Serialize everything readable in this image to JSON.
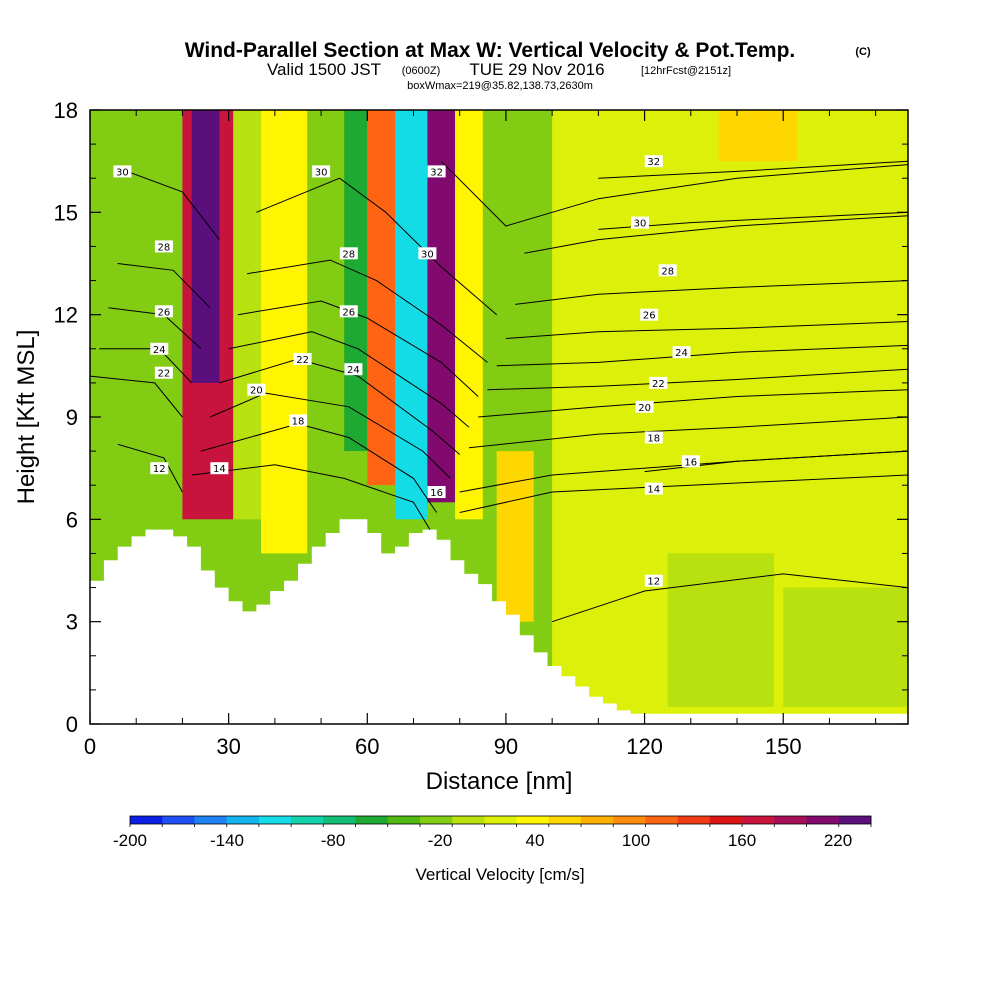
{
  "chart_data": {
    "type": "heatmap",
    "title": "Wind-Parallel Section at Max W: Vertical Velocity & Pot.Temp.",
    "title_mark": "(C)",
    "subtitle": {
      "valid": "Valid 1500 JST",
      "z_time": "(0600Z)",
      "date": "TUE 29 Nov 2016",
      "forecast": "[12hrFcst@2151z]",
      "box": "boxWmax=219@35.82,138.73,2630m"
    },
    "xlabel": "Distance [nm]",
    "ylabel": "Height [Kft MSL]",
    "xlim": [
      0,
      177
    ],
    "ylim": [
      0,
      18
    ],
    "x_ticks": [
      "0",
      "30",
      "60",
      "90",
      "120",
      "150"
    ],
    "y_ticks": [
      "0",
      "3",
      "6",
      "9",
      "12",
      "15",
      "18"
    ],
    "colorbar": {
      "label": "Vertical Velocity [cm/s]",
      "tick_labels": [
        "-200",
        "-140",
        "-80",
        "-20",
        "40",
        "100",
        "160",
        "220"
      ],
      "colors": [
        "#0a1ee6",
        "#1f50f5",
        "#1e82f5",
        "#14b4f0",
        "#14dce6",
        "#14d2aa",
        "#14be78",
        "#1eaa32",
        "#50b914",
        "#82cd14",
        "#b9e10f",
        "#dcf00a",
        "#fff500",
        "#ffd700",
        "#ffaf00",
        "#ff8c0a",
        "#ff6414",
        "#f03c14",
        "#dc1414",
        "#c8143c",
        "#a50f55",
        "#820a6e",
        "#5a0f7d"
      ]
    },
    "velocity_cells": [
      {
        "x": [
          0,
          13
        ],
        "y": [
          3.5,
          18
        ],
        "value": -40
      },
      {
        "x": [
          13,
          19
        ],
        "y": [
          7,
          18
        ],
        "value": -50
      },
      {
        "x": [
          20,
          31
        ],
        "y": [
          6,
          18
        ],
        "value": 160
      },
      {
        "x": [
          22,
          28
        ],
        "y": [
          10,
          18
        ],
        "value": 210
      },
      {
        "x": [
          31,
          37
        ],
        "y": [
          6,
          18
        ],
        "value": -20
      },
      {
        "x": [
          37,
          47
        ],
        "y": [
          5,
          18
        ],
        "value": 10
      },
      {
        "x": [
          48,
          55
        ],
        "y": [
          6.5,
          18
        ],
        "value": -40
      },
      {
        "x": [
          55,
          60
        ],
        "y": [
          8,
          18
        ],
        "value": -90
      },
      {
        "x": [
          60,
          66
        ],
        "y": [
          7,
          18
        ],
        "value": 100
      },
      {
        "x": [
          66,
          73
        ],
        "y": [
          6,
          18
        ],
        "value": -150
      },
      {
        "x": [
          73,
          79
        ],
        "y": [
          6.5,
          18
        ],
        "value": 200
      },
      {
        "x": [
          79,
          85
        ],
        "y": [
          6,
          18
        ],
        "value": 10
      },
      {
        "x": [
          88,
          96
        ],
        "y": [
          3,
          8
        ],
        "value": 40
      },
      {
        "x": [
          100,
          177
        ],
        "y": [
          0,
          18
        ],
        "value": 0
      },
      {
        "x": [
          125,
          148
        ],
        "y": [
          0.5,
          5
        ],
        "value": -20
      },
      {
        "x": [
          150,
          177
        ],
        "y": [
          0.5,
          4
        ],
        "value": -20
      },
      {
        "x": [
          160,
          177
        ],
        "y": [
          5,
          18
        ],
        "value": 0
      },
      {
        "x": [
          136,
          153
        ],
        "y": [
          16.5,
          18
        ],
        "value": 40
      }
    ],
    "terrain_profile": {
      "x": [
        0,
        3,
        6,
        9,
        12,
        15,
        18,
        21,
        24,
        27,
        30,
        33,
        36,
        39,
        42,
        45,
        48,
        51,
        54,
        57,
        60,
        63,
        66,
        69,
        72,
        75,
        78,
        81,
        84,
        87,
        90,
        93,
        96,
        99,
        102,
        105,
        108,
        111,
        114,
        117,
        120,
        125,
        130,
        135,
        140,
        145,
        150,
        155,
        160,
        165,
        170,
        177
      ],
      "y": [
        4.2,
        4.8,
        5.2,
        5.5,
        5.7,
        5.7,
        5.5,
        5.2,
        4.5,
        4.0,
        3.6,
        3.3,
        3.5,
        3.9,
        4.2,
        4.7,
        5.2,
        5.6,
        6.0,
        6.0,
        5.6,
        5.0,
        5.2,
        5.6,
        5.7,
        5.4,
        4.8,
        4.4,
        4.1,
        3.6,
        3.2,
        2.6,
        2.1,
        1.7,
        1.4,
        1.1,
        0.8,
        0.6,
        0.4,
        0.3,
        0.3,
        0.3,
        0.3,
        0.3,
        0.3,
        0.3,
        0.3,
        0.3,
        0.3,
        0.3,
        0.3,
        0.3
      ]
    },
    "potential_temperature_contours": [
      {
        "level": 12,
        "points": [
          [
            6,
            8.2
          ],
          [
            16,
            7.8
          ],
          [
            20,
            6.8
          ]
        ],
        "label": "12",
        "label_at": [
          15,
          7.5
        ]
      },
      {
        "level": 14,
        "points": [
          [
            22,
            7.3
          ],
          [
            40,
            7.6
          ],
          [
            55,
            7.2
          ],
          [
            70,
            6.5
          ],
          [
            74,
            5.6
          ]
        ],
        "label": "14",
        "label_at": [
          28,
          7.5
        ]
      },
      {
        "level": 14,
        "points": [
          [
            80,
            6.2
          ],
          [
            100,
            6.8
          ],
          [
            130,
            7.0
          ],
          [
            177,
            7.3
          ]
        ],
        "label": "14",
        "label_at": [
          122,
          6.9
        ]
      },
      {
        "level": 12,
        "points": [
          [
            100,
            3.0
          ],
          [
            120,
            3.9
          ],
          [
            150,
            4.4
          ],
          [
            177,
            4.0
          ]
        ],
        "label": "12",
        "label_at": [
          122,
          4.2
        ]
      },
      {
        "level": 16,
        "points": [
          [
            80,
            6.8
          ],
          [
            100,
            7.3
          ],
          [
            140,
            7.7
          ],
          [
            177,
            8.0
          ]
        ],
        "label": "16",
        "label_at": [
          75,
          6.8
        ]
      },
      {
        "level": 16,
        "points": [
          [
            120,
            7.4
          ],
          [
            140,
            7.7
          ],
          [
            177,
            8.0
          ]
        ],
        "label": "16",
        "label_at": [
          130,
          7.7
        ]
      },
      {
        "level": 18,
        "points": [
          [
            24,
            8.0
          ],
          [
            45,
            8.8
          ],
          [
            56,
            8.4
          ],
          [
            70,
            7.2
          ],
          [
            75,
            6.2
          ]
        ],
        "label": "18",
        "label_at": [
          45,
          8.9
        ]
      },
      {
        "level": 18,
        "points": [
          [
            82,
            8.1
          ],
          [
            110,
            8.5
          ],
          [
            140,
            8.7
          ],
          [
            177,
            9.0
          ]
        ],
        "label": "18",
        "label_at": [
          122,
          8.4
        ]
      },
      {
        "level": 20,
        "points": [
          [
            26,
            9.0
          ],
          [
            38,
            9.7
          ],
          [
            56,
            9.3
          ],
          [
            72,
            8.0
          ],
          [
            78,
            7.2
          ]
        ],
        "label": "20",
        "label_at": [
          36,
          9.8
        ]
      },
      {
        "level": 20,
        "points": [
          [
            84,
            9.0
          ],
          [
            110,
            9.3
          ],
          [
            140,
            9.6
          ],
          [
            177,
            9.8
          ]
        ],
        "label": "20",
        "label_at": [
          120,
          9.3
        ]
      },
      {
        "level": 22,
        "points": [
          [
            0,
            10.2
          ],
          [
            14,
            10.0
          ],
          [
            20,
            9.0
          ]
        ],
        "label": "22",
        "label_at": [
          16,
          10.3
        ]
      },
      {
        "level": 22,
        "points": [
          [
            28,
            10.0
          ],
          [
            45,
            10.7
          ],
          [
            58,
            10.2
          ],
          [
            74,
            8.6
          ],
          [
            80,
            7.9
          ]
        ],
        "label": "22",
        "label_at": [
          46,
          10.7
        ]
      },
      {
        "level": 22,
        "points": [
          [
            86,
            9.8
          ],
          [
            110,
            9.9
          ],
          [
            140,
            10.1
          ],
          [
            177,
            10.4
          ]
        ],
        "label": "22",
        "label_at": [
          123,
          10.0
        ]
      },
      {
        "level": 24,
        "points": [
          [
            2,
            11.0
          ],
          [
            15,
            11.0
          ],
          [
            22,
            10.0
          ]
        ],
        "label": "24",
        "label_at": [
          15,
          11.0
        ]
      },
      {
        "level": 24,
        "points": [
          [
            30,
            11.0
          ],
          [
            48,
            11.5
          ],
          [
            58,
            11.0
          ],
          [
            76,
            9.4
          ],
          [
            82,
            8.7
          ]
        ],
        "label": "24",
        "label_at": [
          57,
          10.4
        ]
      },
      {
        "level": 24,
        "points": [
          [
            88,
            10.5
          ],
          [
            110,
            10.6
          ],
          [
            140,
            10.9
          ],
          [
            177,
            11.1
          ]
        ],
        "label": "24",
        "label_at": [
          128,
          10.9
        ]
      },
      {
        "level": 26,
        "points": [
          [
            4,
            12.2
          ],
          [
            16,
            12.0
          ],
          [
            24,
            11.0
          ]
        ],
        "label": "26",
        "label_at": [
          16,
          12.1
        ]
      },
      {
        "level": 26,
        "points": [
          [
            32,
            12.0
          ],
          [
            50,
            12.4
          ],
          [
            60,
            11.9
          ],
          [
            76,
            10.6
          ],
          [
            84,
            9.6
          ]
        ],
        "label": "26",
        "label_at": [
          56,
          12.1
        ]
      },
      {
        "level": 26,
        "points": [
          [
            90,
            11.3
          ],
          [
            110,
            11.5
          ],
          [
            140,
            11.6
          ],
          [
            177,
            11.8
          ]
        ],
        "label": "26",
        "label_at": [
          121,
          12.0
        ]
      },
      {
        "level": 28,
        "points": [
          [
            6,
            13.5
          ],
          [
            18,
            13.3
          ],
          [
            26,
            12.2
          ]
        ],
        "label": "28",
        "label_at": [
          16,
          14.0
        ]
      },
      {
        "level": 28,
        "points": [
          [
            34,
            13.2
          ],
          [
            52,
            13.6
          ],
          [
            62,
            13.0
          ],
          [
            76,
            11.7
          ],
          [
            86,
            10.6
          ]
        ],
        "label": "28",
        "label_at": [
          56,
          13.8
        ]
      },
      {
        "level": 28,
        "points": [
          [
            92,
            12.3
          ],
          [
            110,
            12.6
          ],
          [
            140,
            12.8
          ],
          [
            177,
            13.0
          ]
        ],
        "label": "28",
        "label_at": [
          125,
          13.3
        ]
      },
      {
        "level": 30,
        "points": [
          [
            8,
            16.2
          ],
          [
            20,
            15.6
          ],
          [
            28,
            14.2
          ]
        ],
        "label": "30",
        "label_at": [
          7,
          16.2
        ]
      },
      {
        "level": 30,
        "points": [
          [
            36,
            15.0
          ],
          [
            54,
            16.0
          ],
          [
            64,
            15.0
          ],
          [
            76,
            13.4
          ],
          [
            88,
            12.0
          ]
        ],
        "label": "30",
        "label_at": [
          50,
          16.2
        ]
      },
      {
        "level": 30,
        "points": [
          [
            94,
            13.8
          ],
          [
            110,
            14.2
          ],
          [
            140,
            14.6
          ],
          [
            177,
            14.9
          ]
        ],
        "label": "30",
        "label_at": [
          73,
          13.8
        ]
      },
      {
        "level": 30,
        "points": [
          [
            110,
            14.5
          ],
          [
            130,
            14.7
          ],
          [
            177,
            15.0
          ]
        ],
        "label": "30",
        "label_at": [
          119,
          14.7
        ]
      },
      {
        "level": 32,
        "points": [
          [
            76,
            16.5
          ],
          [
            90,
            14.6
          ],
          [
            110,
            15.4
          ],
          [
            140,
            16.0
          ],
          [
            177,
            16.4
          ]
        ],
        "label": "32",
        "label_at": [
          75,
          16.2
        ]
      },
      {
        "level": 32,
        "points": [
          [
            110,
            16.0
          ],
          [
            140,
            16.2
          ],
          [
            177,
            16.5
          ]
        ],
        "label": "32",
        "label_at": [
          122,
          16.5
        ]
      }
    ]
  }
}
